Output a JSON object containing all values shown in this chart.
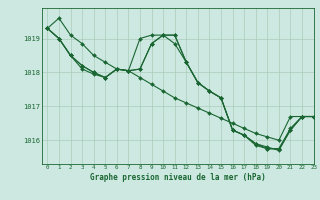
{
  "title": "Graphe pression niveau de la mer (hPa)",
  "bg_color": "#cce8e0",
  "grid_color": "#aaccbb",
  "line_color": "#1a6632",
  "xlim": [
    -0.5,
    23
  ],
  "ylim": [
    1015.3,
    1019.9
  ],
  "yticks": [
    1016,
    1017,
    1018,
    1019
  ],
  "xticks": [
    0,
    1,
    2,
    3,
    4,
    5,
    6,
    7,
    8,
    9,
    10,
    11,
    12,
    13,
    14,
    15,
    16,
    17,
    18,
    19,
    20,
    21,
    22,
    23
  ],
  "series": [
    [
      1019.3,
      1019.6,
      1019.1,
      1018.85,
      1018.5,
      1018.3,
      1018.1,
      1018.05,
      1017.85,
      1017.65,
      1017.45,
      1017.25,
      1017.1,
      1016.95,
      1016.8,
      1016.65,
      1016.5,
      1016.35,
      1016.2,
      1016.1,
      1016.0,
      1016.7,
      1016.7,
      1016.7
    ],
    [
      1019.3,
      1019.0,
      1018.5,
      1018.1,
      1017.95,
      1017.85,
      1018.1,
      1018.05,
      1019.0,
      1019.1,
      1019.1,
      1018.85,
      1018.3,
      1017.7,
      1017.45,
      1017.25,
      1016.3,
      1016.15,
      1015.9,
      1015.8,
      1015.7,
      1016.3,
      1016.7,
      1016.7
    ],
    [
      1019.3,
      1019.0,
      1018.5,
      1018.2,
      1018.0,
      1017.85,
      1018.1,
      1018.05,
      1018.1,
      1018.85,
      1019.1,
      1019.1,
      1018.3,
      1017.7,
      1017.45,
      1017.25,
      1016.3,
      1016.15,
      1015.9,
      1015.75,
      1015.75,
      1016.35,
      1016.7,
      1016.7
    ],
    [
      1019.3,
      1019.0,
      1018.5,
      1018.2,
      1018.0,
      1017.85,
      1018.1,
      1018.05,
      1018.1,
      1018.85,
      1019.1,
      1019.1,
      1018.3,
      1017.7,
      1017.45,
      1017.25,
      1016.3,
      1016.15,
      1015.85,
      1015.75,
      1015.75,
      1016.3,
      1016.7,
      1016.7
    ]
  ]
}
